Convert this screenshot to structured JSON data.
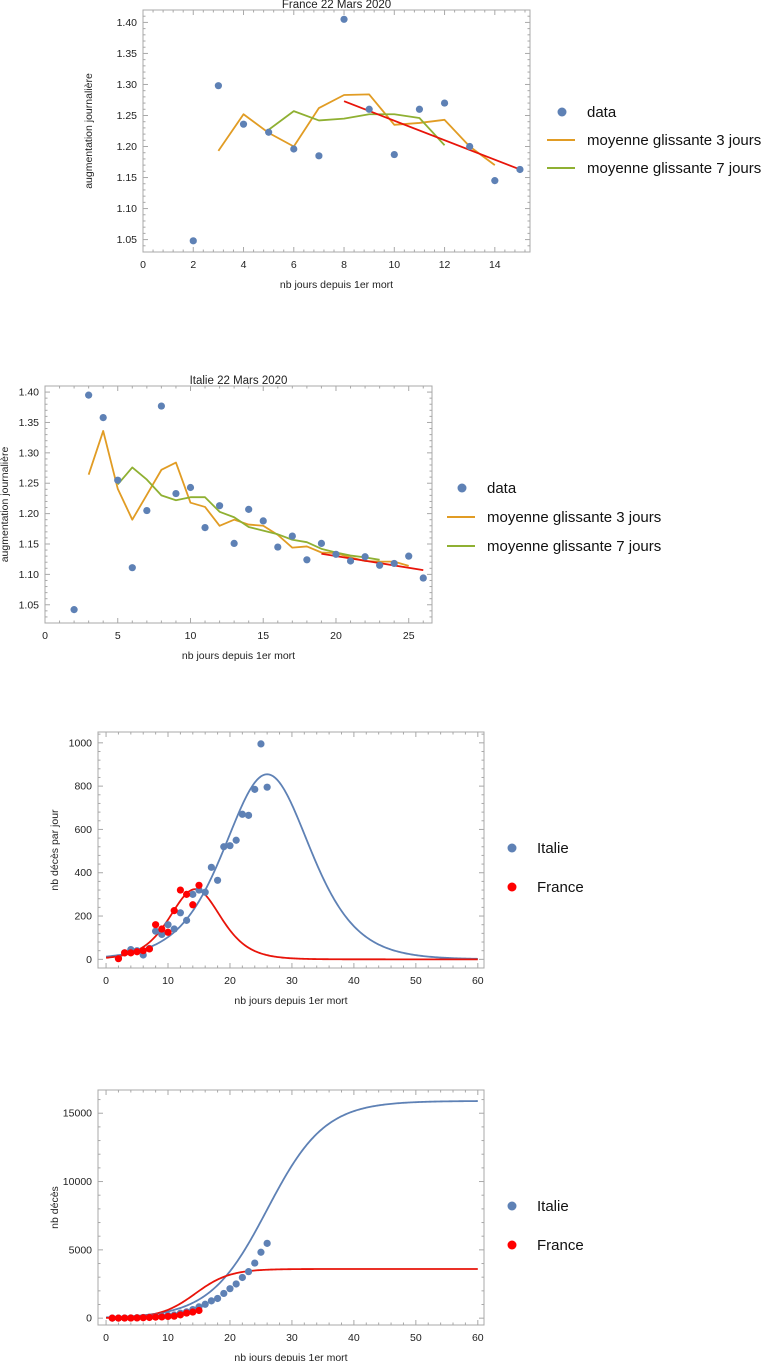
{
  "colors": {
    "blue": "#5E81B5",
    "orange": "#E19C24",
    "green": "#8FB032",
    "red": "#E8140A",
    "red_dot": "#FF0000",
    "frame": "#A8A8A8"
  },
  "chart_data": [
    {
      "type": "scatter",
      "title": "France 22 Mars 2020",
      "xlabel": "nb jours depuis 1er mort",
      "ylabel": "augmentation journalière",
      "xlim": [
        0,
        15.4
      ],
      "ylim": [
        1.03,
        1.42
      ],
      "xticks": [
        0,
        2,
        4,
        6,
        8,
        10,
        12,
        14
      ],
      "yticks": [
        1.05,
        1.1,
        1.15,
        1.2,
        1.25,
        1.3,
        1.35,
        1.4
      ],
      "grid": false,
      "legend": "right",
      "series": [
        {
          "name": "data",
          "kind": "points",
          "color": "#5E81B5",
          "x": [
            2,
            3,
            4,
            5,
            6,
            7,
            8,
            9,
            10,
            11,
            12,
            13,
            14,
            15
          ],
          "y": [
            1.048,
            1.298,
            1.236,
            1.223,
            1.196,
            1.185,
            1.405,
            1.26,
            1.187,
            1.26,
            1.27,
            1.2,
            1.145,
            1.163
          ]
        },
        {
          "name": "moyenne glissante 3 jours",
          "kind": "line",
          "color": "#E19C24",
          "x": [
            3,
            4,
            5,
            6,
            7,
            8,
            9,
            10,
            11,
            12,
            13,
            14
          ],
          "y": [
            1.193,
            1.252,
            1.222,
            1.2,
            1.262,
            1.283,
            1.284,
            1.235,
            1.238,
            1.243,
            1.2,
            1.17
          ]
        },
        {
          "name": "moyenne glissante 7 jours",
          "kind": "line",
          "color": "#8FB032",
          "x": [
            5,
            6,
            7,
            8,
            9,
            10,
            11,
            12
          ],
          "y": [
            1.227,
            1.257,
            1.242,
            1.245,
            1.252,
            1.252,
            1.246,
            1.202
          ]
        },
        {
          "kind": "line",
          "color": "#E8140A",
          "x": [
            8,
            15
          ],
          "y": [
            1.273,
            1.163
          ]
        }
      ]
    },
    {
      "type": "scatter",
      "title": "Italie 22 Mars 2020",
      "xlabel": "nb jours depuis 1er mort",
      "ylabel": "augmentation journalière",
      "xlim": [
        0,
        26.6
      ],
      "ylim": [
        1.02,
        1.41
      ],
      "xticks": [
        0,
        5,
        10,
        15,
        20,
        25
      ],
      "yticks": [
        1.05,
        1.1,
        1.15,
        1.2,
        1.25,
        1.3,
        1.35,
        1.4
      ],
      "grid": false,
      "legend": "right",
      "series": [
        {
          "name": "data",
          "kind": "points",
          "color": "#5E81B5",
          "x": [
            2,
            3,
            4,
            5,
            6,
            7,
            8,
            9,
            10,
            11,
            12,
            13,
            14,
            15,
            16,
            17,
            18,
            19,
            20,
            21,
            22,
            23,
            24,
            25,
            26
          ],
          "y": [
            1.042,
            1.395,
            1.358,
            1.255,
            1.111,
            1.205,
            1.377,
            1.233,
            1.243,
            1.177,
            1.213,
            1.151,
            1.207,
            1.188,
            1.145,
            1.163,
            1.124,
            1.151,
            1.133,
            1.122,
            1.129,
            1.115,
            1.118,
            1.13,
            1.094
          ]
        },
        {
          "name": "moyenne glissante 3 jours",
          "kind": "line",
          "color": "#E19C24",
          "x": [
            3,
            4,
            5,
            6,
            7,
            8,
            9,
            10,
            11,
            12,
            13,
            14,
            15,
            16,
            17,
            18,
            19,
            20,
            21,
            22,
            23,
            24,
            25
          ],
          "y": [
            1.264,
            1.336,
            1.241,
            1.19,
            1.231,
            1.272,
            1.284,
            1.218,
            1.211,
            1.18,
            1.19,
            1.182,
            1.18,
            1.165,
            1.144,
            1.146,
            1.136,
            1.135,
            1.128,
            1.122,
            1.121,
            1.121,
            1.114
          ]
        },
        {
          "name": "moyenne glissante 7 jours",
          "kind": "line",
          "color": "#8FB032",
          "x": [
            5,
            6,
            7,
            8,
            9,
            10,
            11,
            12,
            13,
            14,
            15,
            16,
            17,
            18,
            19,
            20,
            21,
            22,
            23
          ],
          "y": [
            1.248,
            1.276,
            1.256,
            1.23,
            1.222,
            1.227,
            1.227,
            1.203,
            1.194,
            1.178,
            1.172,
            1.166,
            1.157,
            1.153,
            1.142,
            1.136,
            1.131,
            1.128,
            1.124
          ]
        },
        {
          "kind": "line",
          "color": "#E8140A",
          "x": [
            19,
            26
          ],
          "y": [
            1.134,
            1.107
          ]
        }
      ]
    },
    {
      "type": "scatter",
      "title": "",
      "xlabel": "nb jours depuis 1er mort",
      "ylabel": "nb décès par jour",
      "xlim": [
        -1.3,
        61
      ],
      "ylim": [
        -40,
        1050
      ],
      "xticks": [
        0,
        10,
        20,
        30,
        40,
        50,
        60
      ],
      "yticks": [
        0,
        200,
        400,
        600,
        800,
        1000
      ],
      "grid": false,
      "legend": "right",
      "series": [
        {
          "name": "Italie",
          "kind": "points",
          "color": "#5E81B5",
          "x": [
            2,
            3,
            4,
            5,
            6,
            7,
            8,
            9,
            10,
            11,
            12,
            13,
            14,
            15,
            16,
            17,
            18,
            19,
            20,
            21,
            22,
            23,
            24,
            25,
            26
          ],
          "y": [
            5,
            30,
            45,
            40,
            20,
            50,
            130,
            115,
            160,
            140,
            215,
            180,
            300,
            320,
            310,
            425,
            365,
            520,
            525,
            550,
            670,
            665,
            785,
            995,
            795
          ]
        },
        {
          "name": "France",
          "kind": "points",
          "color": "#FF0000",
          "x": [
            2,
            3,
            4,
            5,
            6,
            7,
            8,
            9,
            10,
            11,
            12,
            13,
            14,
            15
          ],
          "y": [
            3,
            30,
            30,
            35,
            40,
            48,
            160,
            140,
            125,
            225,
            320,
            300,
            252,
            342
          ]
        },
        {
          "kind": "curve",
          "color": "#5E81B5",
          "model": "logistic-derivative",
          "params": {
            "L": 15900,
            "k": 0.215,
            "x0": 26
          }
        },
        {
          "kind": "curve",
          "color": "#E8140A",
          "model": "logistic-derivative",
          "params": {
            "L": 3600,
            "k": 0.36,
            "x0": 14.4
          }
        }
      ]
    },
    {
      "type": "scatter",
      "title": "",
      "xlabel": "nb jours depuis 1er mort",
      "ylabel": "nb décès",
      "xlim": [
        -1.3,
        61
      ],
      "ylim": [
        -500,
        16700
      ],
      "xticks": [
        0,
        10,
        20,
        30,
        40,
        50,
        60
      ],
      "yticks": [
        0,
        5000,
        10000,
        15000
      ],
      "grid": false,
      "legend": "right",
      "series": [
        {
          "name": "Italie",
          "kind": "points",
          "color": "#5E81B5",
          "x": [
            1,
            2,
            3,
            4,
            5,
            6,
            7,
            8,
            9,
            10,
            11,
            12,
            13,
            14,
            15,
            16,
            17,
            18,
            19,
            20,
            21,
            22,
            23,
            24,
            25,
            26
          ],
          "y": [
            2,
            7,
            12,
            17,
            29,
            52,
            79,
            107,
            148,
            197,
            233,
            366,
            463,
            631,
            827,
            1016,
            1266,
            1441,
            1809,
            2158,
            2503,
            2978,
            3405,
            4032,
            4825,
            5476
          ]
        },
        {
          "name": "France",
          "kind": "points",
          "color": "#FF0000",
          "x": [
            1,
            2,
            3,
            4,
            5,
            6,
            7,
            8,
            9,
            10,
            11,
            12,
            13,
            14,
            15
          ],
          "y": [
            2,
            3,
            7,
            11,
            19,
            33,
            48,
            79,
            91,
            127,
            148,
            243,
            372,
            450,
            562
          ]
        },
        {
          "kind": "curve",
          "color": "#5E81B5",
          "model": "logistic",
          "params": {
            "L": 15900,
            "k": 0.215,
            "x0": 26
          }
        },
        {
          "kind": "curve",
          "color": "#E8140A",
          "model": "logistic",
          "params": {
            "L": 3600,
            "k": 0.36,
            "x0": 14.4
          }
        }
      ]
    }
  ]
}
